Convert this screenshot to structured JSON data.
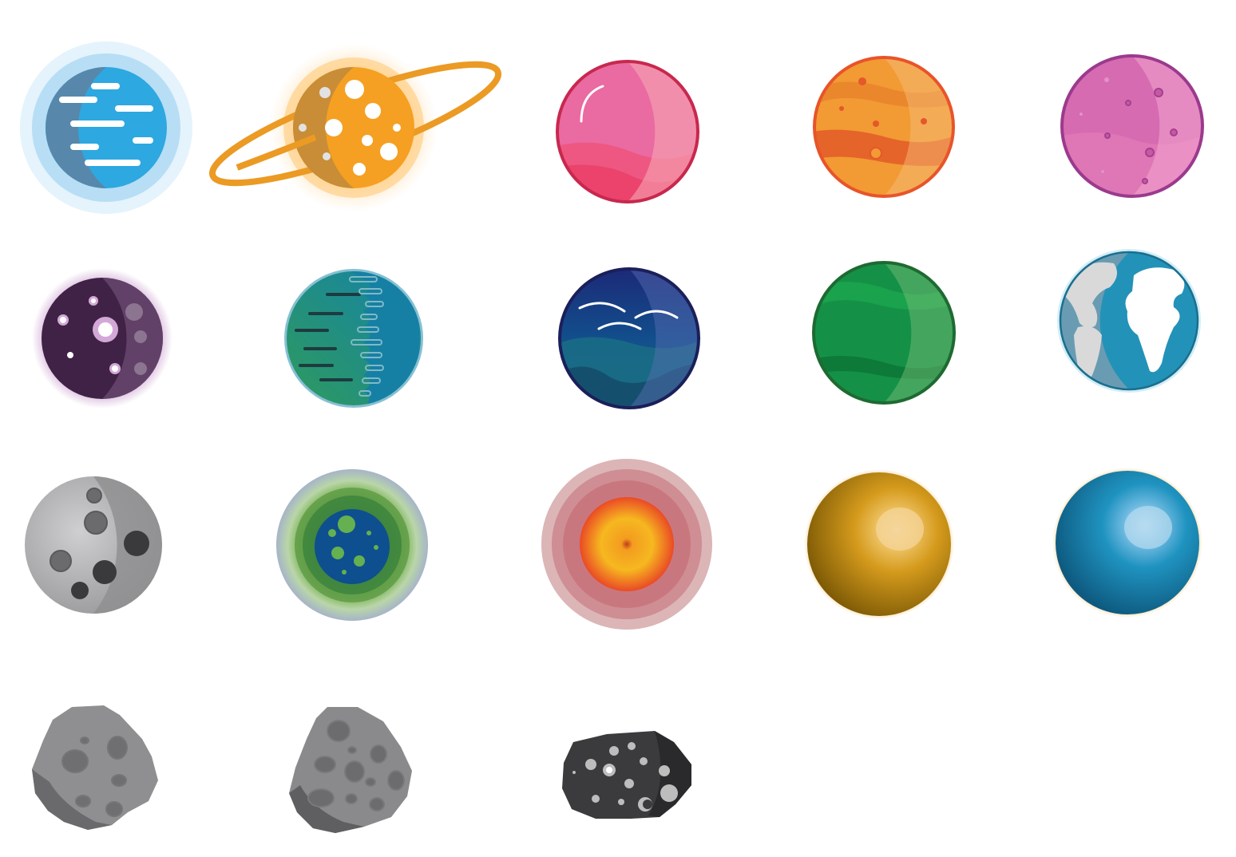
{
  "sheet": {
    "background": "#ffffff",
    "rows": [
      {
        "items": [
          {
            "icon": "blue-streaked-planet-icon",
            "colors": [
              "#2ea8e0",
              "#bfe6f8"
            ]
          },
          {
            "icon": "orange-ringed-planet-icon",
            "colors": [
              "#f5a022",
              "#ffd89a"
            ]
          },
          {
            "icon": "pink-glossy-planet-icon",
            "colors": [
              "#ee5a86",
              "#c8284e"
            ]
          },
          {
            "icon": "orange-banded-planet-icon",
            "colors": [
              "#f29a34",
              "#e8542a"
            ]
          },
          {
            "icon": "magenta-cratered-planet-icon",
            "colors": [
              "#d66bb1",
              "#9b3a8d"
            ]
          }
        ]
      },
      {
        "items": [
          {
            "icon": "dark-purple-planet-icon",
            "colors": [
              "#3f2245",
              "#a862b0"
            ]
          },
          {
            "icon": "teal-green-striped-planet-icon",
            "colors": [
              "#1a87a4",
              "#2d9a64"
            ]
          },
          {
            "icon": "navy-ocean-planet-icon",
            "colors": [
              "#1f2a6a",
              "#1b6a85"
            ]
          },
          {
            "icon": "green-banded-planet-icon",
            "colors": [
              "#149147",
              "#1e6a32"
            ]
          },
          {
            "icon": "earth-globe-icon",
            "colors": [
              "#2392b8",
              "#cfcfcf"
            ]
          }
        ]
      },
      {
        "items": [
          {
            "icon": "grey-moon-icon",
            "colors": [
              "#b9b9bb",
              "#6b6b6d"
            ]
          },
          {
            "icon": "green-nebula-planet-icon",
            "colors": [
              "#0b4a8a",
              "#6ea84a"
            ]
          },
          {
            "icon": "red-sun-icon",
            "colors": [
              "#f6b820",
              "#e0533a"
            ]
          },
          {
            "icon": "gold-sphere-icon",
            "colors": [
              "#c58e12",
              "#f2cf82"
            ]
          },
          {
            "icon": "blue-sphere-icon",
            "colors": [
              "#1d8cb7",
              "#9fd0ea"
            ]
          }
        ]
      },
      {
        "items": [
          {
            "icon": "grey-asteroid-icon",
            "colors": [
              "#8f8f91",
              "#666668"
            ]
          },
          {
            "icon": "grey-rough-asteroid-icon",
            "colors": [
              "#8a8a8c",
              "#606062"
            ]
          },
          {
            "icon": "dark-asteroid-icon",
            "colors": [
              "#3b3b3d",
              "#bdbdbd"
            ]
          }
        ]
      }
    ]
  }
}
